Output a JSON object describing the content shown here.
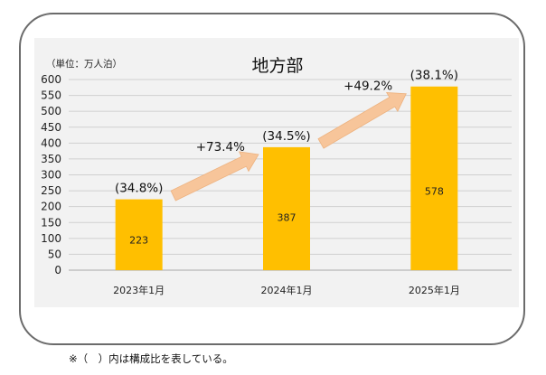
{
  "chart_data": {
    "type": "bar",
    "title": "地方部",
    "unit_label": "（単位：万人泊）",
    "categories": [
      "2023年1月",
      "2024年1月",
      "2025年1月"
    ],
    "values": [
      223,
      387,
      578
    ],
    "value_labels": [
      "223",
      "387",
      "578"
    ],
    "share_labels": [
      "(34.8%)",
      "(34.5%)",
      "(38.1%)"
    ],
    "growth_labels": [
      "+73.4%",
      "+49.2%"
    ],
    "ylim": [
      0,
      600
    ],
    "yticks": [
      0,
      50,
      100,
      150,
      200,
      250,
      300,
      350,
      400,
      450,
      500,
      550,
      600
    ],
    "grid": true,
    "colors": {
      "bar": "#FFBF00",
      "arrow": "#F7C59A",
      "grid": "#D0D0D0",
      "panel": "#F2F2F2"
    }
  },
  "footnote": "※（　）内は構成比を表している。"
}
